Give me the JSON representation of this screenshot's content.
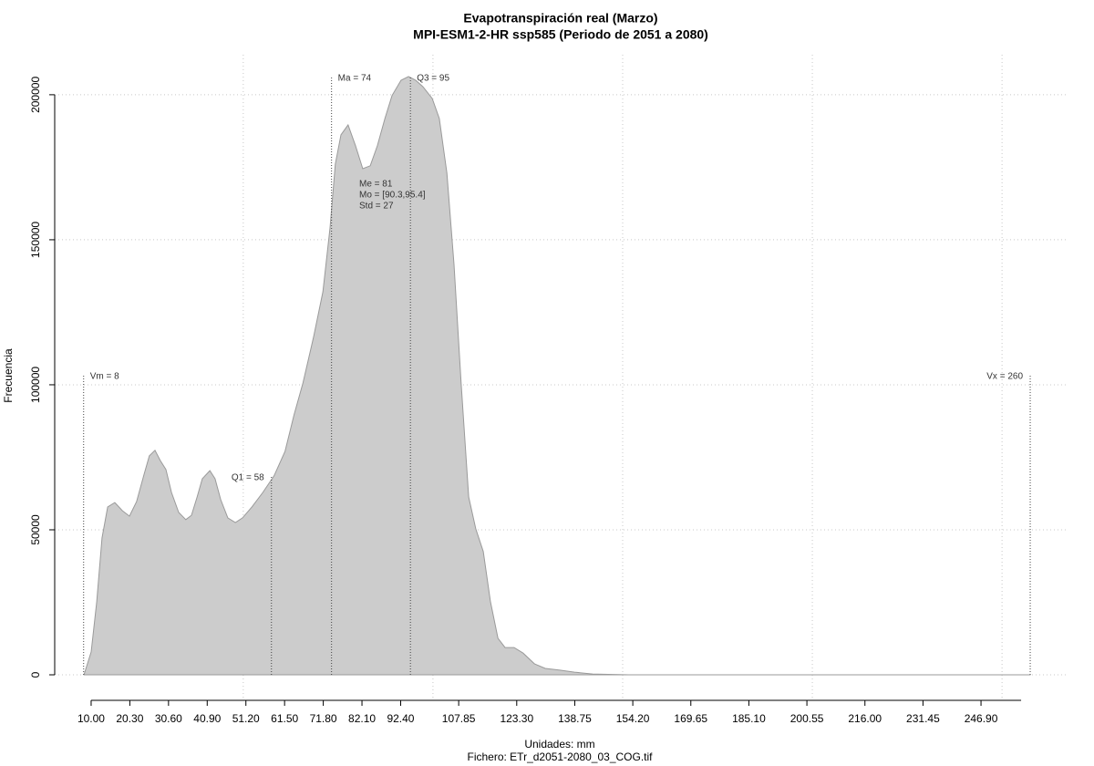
{
  "chart_data": {
    "type": "area",
    "title": "Evapotranspiración real (Marzo)",
    "subtitle": "MPI-ESM1-2-HR ssp585 (Periodo de 2051 a 2080)",
    "x_label": "Unidades: mm",
    "footer": "Fichero: ETr_d2051-2080_03_COG.tif",
    "y_label": "Frecuencia",
    "color": "#cccccc",
    "x": [
      8.1,
      10,
      11.5,
      12.9,
      14.4,
      16.3,
      18.3,
      20.2,
      22.1,
      24.1,
      25.5,
      27.0,
      28.4,
      29.9,
      31.4,
      33.3,
      35.2,
      36.7,
      38.2,
      39.6,
      41.6,
      43.0,
      44.5,
      46.4,
      48.4,
      50.3,
      52.8,
      55.7,
      58.7,
      61.6,
      64.0,
      66.4,
      69.2,
      71.7,
      73.6,
      75.0,
      76.5,
      78.4,
      80.4,
      82.3,
      84.3,
      86.2,
      88.2,
      90.1,
      92.5,
      94.5,
      96.4,
      98.3,
      100.8,
      102.7,
      104.7,
      106.6,
      108.5,
      110.5,
      112.4,
      114.4,
      116.3,
      118.3,
      120.2,
      122.6,
      125.0,
      128.0,
      130.9,
      134.8,
      138.7,
      143.5,
      153.2,
      260
    ],
    "values": [
      0,
      7900,
      25200,
      47200,
      57900,
      59400,
      56600,
      54700,
      59700,
      69200,
      75500,
      77400,
      73900,
      70800,
      62900,
      56000,
      53500,
      55000,
      61300,
      67600,
      70400,
      67600,
      60400,
      54100,
      52500,
      54100,
      57900,
      62900,
      68600,
      77000,
      89600,
      100600,
      116400,
      132100,
      154100,
      176100,
      186200,
      189600,
      182400,
      174500,
      175500,
      182400,
      191800,
      199700,
      205000,
      206300,
      205000,
      202800,
      198700,
      191800,
      173000,
      141500,
      100600,
      61300,
      50300,
      42500,
      25200,
      12600,
      9400,
      9400,
      7500,
      3800,
      2200,
      1600,
      900,
      300,
      0,
      0
    ],
    "xlim": [
      0.3,
      269.7
    ],
    "ylim": [
      -8800,
      213800
    ],
    "xticks": [
      {
        "value": 10,
        "label": "10.00"
      },
      {
        "value": 20.3,
        "label": "20.30"
      },
      {
        "value": 30.6,
        "label": "30.60"
      },
      {
        "value": 40.9,
        "label": "40.90"
      },
      {
        "value": 51.2,
        "label": "51.20"
      },
      {
        "value": 61.5,
        "label": "61.50"
      },
      {
        "value": 71.8,
        "label": "71.80"
      },
      {
        "value": 82.1,
        "label": "82.10"
      },
      {
        "value": 92.4,
        "label": "92.40"
      },
      {
        "value": 107.85,
        "label": "107.85"
      },
      {
        "value": 123.3,
        "label": "123.30"
      },
      {
        "value": 138.75,
        "label": "138.75"
      },
      {
        "value": 154.2,
        "label": "154.20"
      },
      {
        "value": 169.65,
        "label": "169.65"
      },
      {
        "value": 185.1,
        "label": "185.10"
      },
      {
        "value": 200.55,
        "label": "200.55"
      },
      {
        "value": 216,
        "label": "216.00"
      },
      {
        "value": 231.45,
        "label": "231.45"
      },
      {
        "value": 246.9,
        "label": "246.90"
      }
    ],
    "yticks": [
      0,
      50000,
      100000,
      150000,
      200000
    ],
    "xgrid": [
      50.5,
      101,
      151.5,
      202,
      252.5
    ],
    "grid": true,
    "annotations": [
      {
        "label": "Vm = 8",
        "x": 8
      },
      {
        "label": "Q1 = 58",
        "x": 58
      },
      {
        "label": "Ma = 74",
        "x": 74
      },
      {
        "label": "Q3 = 95",
        "x": 95
      },
      {
        "label": "Vx = 260",
        "x": 260
      }
    ],
    "stats": [
      "Me = 81",
      "Mo = [90.3,95.4]",
      "Std = 27"
    ]
  }
}
